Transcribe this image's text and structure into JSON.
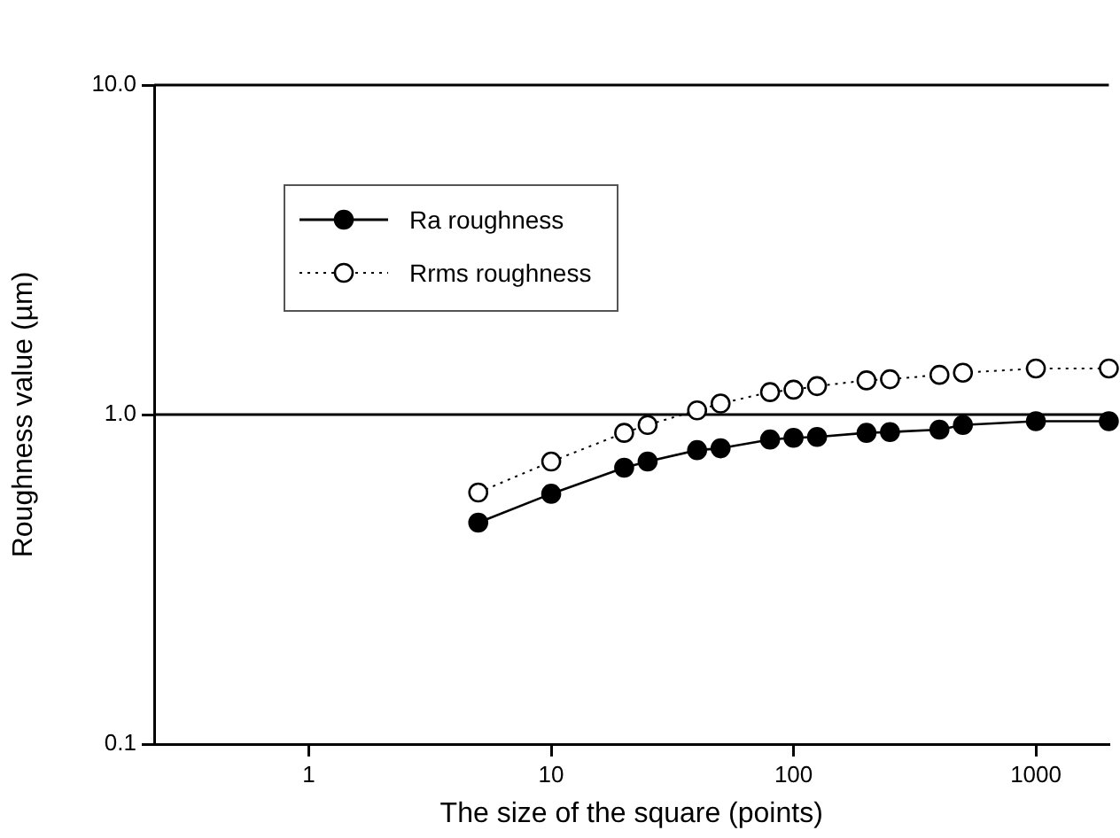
{
  "chart_data": {
    "type": "line",
    "xlabel": "The size of the square (points)",
    "ylabel": "Roughness value (µm)",
    "log": "xy",
    "xlim": [
      0.23,
      2000
    ],
    "ylim": [
      0.1,
      10
    ],
    "xticks": [
      1,
      10,
      100,
      1000
    ],
    "yticks": [
      0.1,
      {
        "value": 1,
        "label": "1.0"
      },
      {
        "value": 10,
        "label": "10.0"
      }
    ],
    "x": [
      5,
      10,
      20,
      25,
      40,
      50,
      80,
      100,
      125,
      200,
      250,
      400,
      500,
      1000,
      2000
    ],
    "grid": false,
    "legend": "top left",
    "marker": "circle",
    "ref_lines": [
      {
        "axis": "y",
        "value": 1,
        "color": "#000000"
      }
    ],
    "series": [
      {
        "name": "Ra roughness",
        "color": "#000000",
        "line_style": "solid",
        "values": [
          0.47,
          0.575,
          0.69,
          0.72,
          0.78,
          0.79,
          0.84,
          0.85,
          0.855,
          0.88,
          0.885,
          0.9,
          0.93,
          0.955,
          0.955
        ]
      },
      {
        "name": "Rrms roughness",
        "color": "#000000",
        "line_style": "dotted",
        "values": [
          0.58,
          0.72,
          0.88,
          0.93,
          1.03,
          1.08,
          1.17,
          1.19,
          1.22,
          1.27,
          1.28,
          1.32,
          1.34,
          1.38,
          1.38
        ]
      }
    ]
  }
}
